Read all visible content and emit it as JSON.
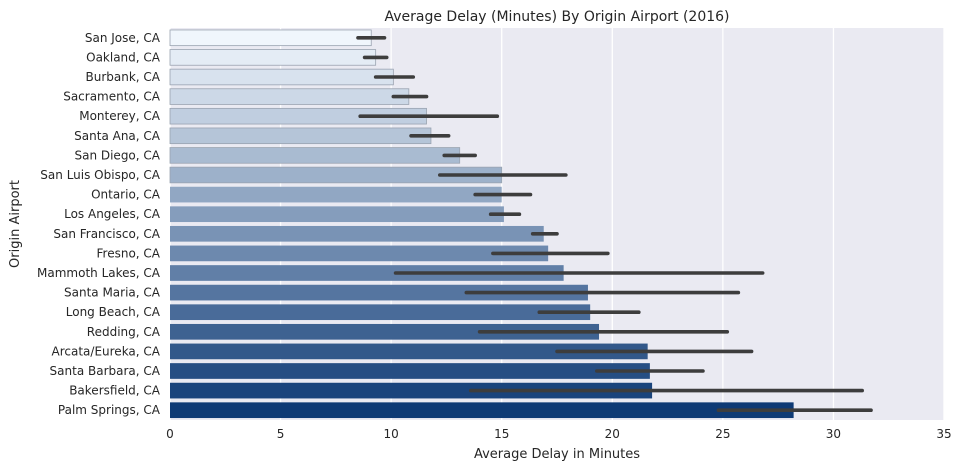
{
  "chart_data": {
    "type": "bar",
    "orientation": "horizontal",
    "title": "Average Delay (Minutes) By Origin Airport (2016)",
    "xlabel": "Average Delay in Minutes",
    "ylabel": "Origin Airport",
    "xlim": [
      0,
      35
    ],
    "xticks": [
      "0",
      "5",
      "10",
      "15",
      "20",
      "25",
      "30",
      "35"
    ],
    "grid": true,
    "colormap": "Blues",
    "categories": [
      "San Jose, CA",
      "Oakland, CA",
      "Burbank, CA",
      "Sacramento, CA",
      "Monterey, CA",
      "Santa Ana, CA",
      "San Diego, CA",
      "San Luis Obispo, CA",
      "Ontario, CA",
      "Los Angeles, CA",
      "San Francisco, CA",
      "Fresno, CA",
      "Mammoth Lakes, CA",
      "Santa Maria, CA",
      "Long Beach, CA",
      "Redding, CA",
      "Arcata/Eureka, CA",
      "Santa Barbara, CA",
      "Bakersfield, CA",
      "Palm Springs, CA"
    ],
    "values": [
      9.1,
      9.3,
      10.1,
      10.8,
      11.6,
      11.8,
      13.1,
      15.0,
      15.0,
      15.1,
      16.9,
      17.1,
      17.8,
      18.9,
      19.0,
      19.4,
      21.6,
      21.7,
      21.8,
      28.2
    ],
    "ci_low": [
      8.5,
      8.8,
      9.3,
      10.1,
      8.6,
      10.9,
      12.4,
      12.2,
      13.8,
      14.5,
      16.4,
      14.6,
      10.2,
      13.4,
      16.7,
      14.0,
      17.5,
      19.3,
      13.6,
      24.8
    ],
    "ci_high": [
      9.7,
      9.8,
      11.0,
      11.6,
      14.8,
      12.6,
      13.8,
      17.9,
      16.3,
      15.8,
      17.5,
      19.8,
      26.8,
      25.7,
      21.2,
      25.2,
      26.3,
      24.1,
      31.3,
      31.7
    ]
  }
}
